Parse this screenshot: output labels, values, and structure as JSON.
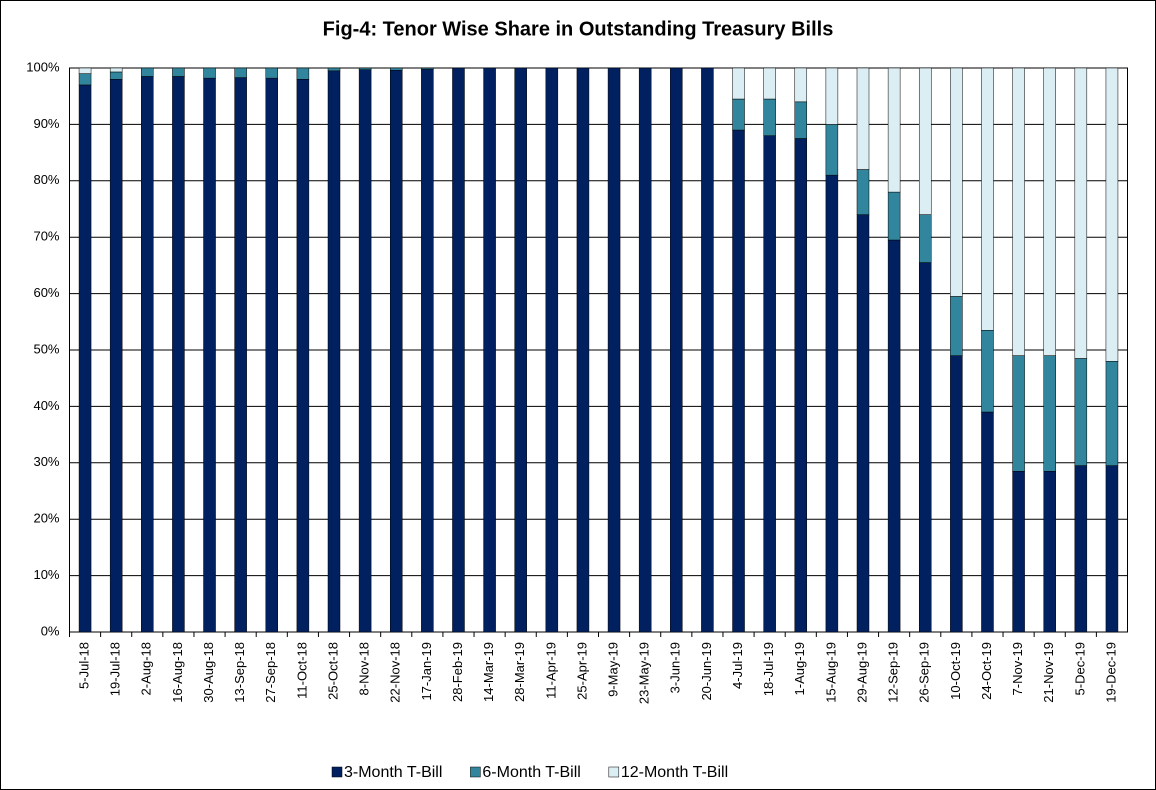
{
  "chart_data": {
    "type": "stacked_bar",
    "title": "Fig-4: Tenor Wise Share in Outstanding Treasury Bills",
    "categories": [
      "5-Jul-18",
      "19-Jul-18",
      "2-Aug-18",
      "16-Aug-18",
      "30-Aug-18",
      "13-Sep-18",
      "27-Sep-18",
      "11-Oct-18",
      "25-Oct-18",
      "8-Nov-18",
      "22-Nov-18",
      "17-Jan-19",
      "28-Feb-19",
      "14-Mar-19",
      "28-Mar-19",
      "11-Apr-19",
      "25-Apr-19",
      "9-May-19",
      "23-May-19",
      "3-Jun-19",
      "20-Jun-19",
      "4-Jul-19",
      "18-Jul-19",
      "1-Aug-19",
      "15-Aug-19",
      "29-Aug-19",
      "12-Sep-19",
      "26-Sep-19",
      "10-Oct-19",
      "24-Oct-19",
      "7-Nov-19",
      "21-Nov-19",
      "5-Dec-19",
      "19-Dec-19"
    ],
    "series": [
      {
        "name": "3-Month T-Bill",
        "color": "#002060",
        "values": [
          97,
          98,
          98.5,
          98.5,
          98.2,
          98.3,
          98.2,
          98,
          99.5,
          99.7,
          99.6,
          99.8,
          100,
          100,
          100,
          100,
          100,
          100,
          100,
          100,
          100,
          89,
          88,
          87.5,
          81,
          74,
          69.5,
          65.5,
          49,
          39,
          28.5,
          28.5,
          29.5,
          29.5
        ]
      },
      {
        "name": "6-Month T-Bill",
        "color": "#31859c",
        "values": [
          2,
          1.3,
          1.5,
          1.5,
          1.8,
          1.7,
          1.8,
          2,
          0.5,
          0.3,
          0.4,
          0.2,
          0,
          0,
          0,
          0,
          0,
          0,
          0,
          0,
          0,
          5.5,
          6.5,
          6.5,
          9,
          8,
          8.5,
          8.5,
          10.5,
          14.5,
          20.5,
          20.5,
          19,
          18.5
        ]
      },
      {
        "name": "12-Month T-Bill",
        "color": "#dbeef4",
        "values": [
          1,
          0.7,
          0,
          0,
          0,
          0,
          0,
          0,
          0,
          0,
          0,
          0,
          0,
          0,
          0,
          0,
          0,
          0,
          0,
          0,
          0,
          5.5,
          5.5,
          6,
          10,
          18,
          22,
          26,
          40.5,
          46.5,
          51,
          51,
          51.5,
          52
        ]
      }
    ],
    "ylim": [
      0,
      100
    ],
    "yticks": [
      {
        "value": 0,
        "label": "0%"
      },
      {
        "value": 10,
        "label": "10%"
      },
      {
        "value": 20,
        "label": "20%"
      },
      {
        "value": 30,
        "label": "30%"
      },
      {
        "value": 40,
        "label": "40%"
      },
      {
        "value": 50,
        "label": "50%"
      },
      {
        "value": 60,
        "label": "60%"
      },
      {
        "value": 70,
        "label": "70%"
      },
      {
        "value": 80,
        "label": "80%"
      },
      {
        "value": 90,
        "label": "90%"
      },
      {
        "value": 100,
        "label": "100%"
      }
    ],
    "grid": true,
    "legend": "bottom"
  }
}
